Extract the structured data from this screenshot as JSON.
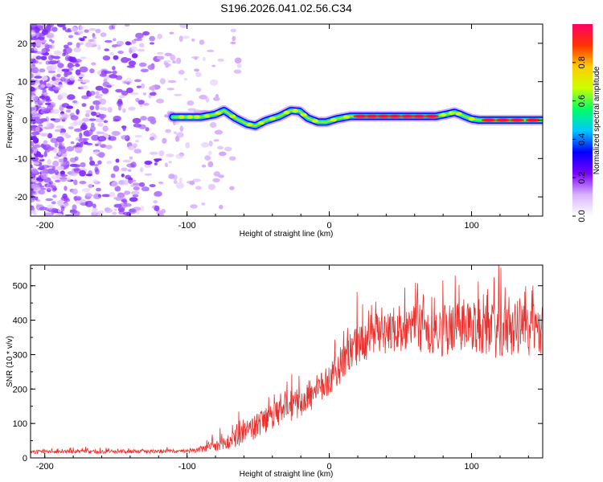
{
  "title": "S196.2026.041.02.56.C34",
  "chart_data": [
    {
      "type": "heatmap",
      "name": "spectrogram",
      "xlabel": "Height of straight line (km)",
      "ylabel": "Frequency (Hz)",
      "xlim": [
        -210,
        150
      ],
      "ylim": [
        -25,
        25
      ],
      "xticks": [
        -200,
        -100,
        0,
        100
      ],
      "yticks": [
        -20,
        -10,
        0,
        10,
        20
      ],
      "colorbar": {
        "label": "Normalized spectral amplitude",
        "range": [
          0,
          1
        ],
        "ticks": [
          "0.0",
          "0.2",
          "0.4",
          "0.6",
          "0.8"
        ],
        "colors": [
          "#ffffff",
          "#d9b3ff",
          "#7a00ff",
          "#0000ff",
          "#00c8ff",
          "#00ff66",
          "#ccff00",
          "#ffcc00",
          "#ff3300",
          "#ff0066"
        ]
      },
      "ridge": {
        "x": [
          -110,
          -90,
          -80,
          -74,
          -66,
          -58,
          -52,
          -45,
          -35,
          -27,
          -21,
          -15,
          -8,
          -2,
          5,
          15,
          30,
          50,
          65,
          75,
          82,
          88,
          92,
          95,
          100,
          105,
          120,
          140,
          150
        ],
        "y": [
          0.8,
          0.8,
          1.5,
          2.5,
          0.5,
          -1.0,
          -1.5,
          -0.2,
          1.0,
          2.5,
          2.3,
          0.5,
          -0.5,
          -0.5,
          0.3,
          1.0,
          1.0,
          1.0,
          1.0,
          1.0,
          1.5,
          2.0,
          1.5,
          1.0,
          0.3,
          0.0,
          0.0,
          0.0,
          0.0
        ]
      },
      "noise_extent_x": [
        -210,
        -60
      ]
    },
    {
      "type": "line",
      "name": "snr",
      "xlabel": "Height of straight line (km)",
      "ylabel": "SNR (10 * v/v)",
      "xlim": [
        -210,
        150
      ],
      "ylim": [
        0,
        560
      ],
      "xticks": [
        -200,
        -100,
        0,
        100
      ],
      "yticks": [
        0,
        100,
        200,
        300,
        400,
        500
      ],
      "series": [
        {
          "name": "SNR",
          "color": "#e8302d",
          "trend_x": [
            -210,
            -150,
            -100,
            -90,
            -80,
            -70,
            -60,
            -50,
            -40,
            -30,
            -20,
            -10,
            0,
            10,
            20,
            30,
            40,
            60,
            80,
            100,
            120,
            140,
            150
          ],
          "trend_y": [
            18,
            18,
            20,
            25,
            32,
            48,
            70,
            95,
            120,
            140,
            160,
            185,
            230,
            280,
            330,
            355,
            370,
            375,
            370,
            375,
            365,
            370,
            370
          ],
          "noise_scale": [
            12,
            12,
            12,
            20,
            40,
            60,
            70,
            80,
            85,
            90,
            95,
            100,
            110,
            120,
            130,
            140,
            150,
            160,
            170,
            170,
            170,
            170,
            170
          ]
        }
      ]
    }
  ]
}
